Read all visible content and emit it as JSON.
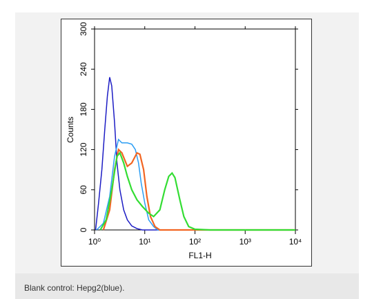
{
  "chart_data": {
    "type": "line",
    "x_label": "FL1-H",
    "y_label": "Counts",
    "log_x": true,
    "xlim": [
      1,
      10000
    ],
    "xticks": [
      {
        "value": 1,
        "label": "10⁰"
      },
      {
        "value": 10,
        "label": "10¹"
      },
      {
        "value": 100,
        "label": "10²"
      },
      {
        "value": 1000,
        "label": "10³"
      },
      {
        "value": 10000,
        "label": "10⁴"
      }
    ],
    "ylim": [
      0,
      300
    ],
    "yticks": [
      0,
      60,
      120,
      180,
      240,
      300
    ],
    "series": [
      {
        "color": "#1c1cc4",
        "x": [
          1.05,
          1.2,
          1.4,
          1.6,
          1.8,
          2.0,
          2.2,
          2.5,
          2.8,
          3.2,
          3.8,
          4.5,
          5.5,
          7,
          9,
          10000
        ],
        "values": [
          0,
          40,
          90,
          150,
          200,
          228,
          215,
          160,
          100,
          60,
          30,
          15,
          6,
          2,
          0,
          0
        ]
      },
      {
        "color": "#2a9df4",
        "x": [
          1.1,
          1.5,
          2,
          2.5,
          3,
          3.5,
          4.5,
          5.5,
          6.5,
          7.5,
          8.5,
          10,
          12,
          15,
          18,
          10000
        ],
        "values": [
          0,
          10,
          50,
          110,
          135,
          130,
          130,
          128,
          120,
          100,
          70,
          40,
          15,
          5,
          0,
          0
        ]
      },
      {
        "color": "#f26522",
        "x": [
          1.5,
          2,
          2.5,
          3,
          3.5,
          4.5,
          5.5,
          7,
          8,
          9.5,
          11,
          13,
          16,
          20,
          10000
        ],
        "values": [
          0,
          30,
          90,
          120,
          115,
          95,
          100,
          115,
          113,
          90,
          50,
          20,
          5,
          0,
          0
        ]
      },
      {
        "color": "#33dd33",
        "x": [
          1.3,
          1.7,
          2.2,
          2.8,
          3.2,
          3.8,
          4.5,
          5.5,
          7,
          9,
          12,
          15,
          20,
          25,
          30,
          35,
          40,
          50,
          60,
          75,
          100,
          200,
          10000
        ],
        "values": [
          0,
          15,
          60,
          110,
          115,
          100,
          80,
          60,
          45,
          35,
          25,
          20,
          30,
          60,
          80,
          85,
          78,
          45,
          20,
          5,
          1,
          0,
          0
        ]
      }
    ]
  },
  "caption": "Blank control: Hepg2(blue)."
}
